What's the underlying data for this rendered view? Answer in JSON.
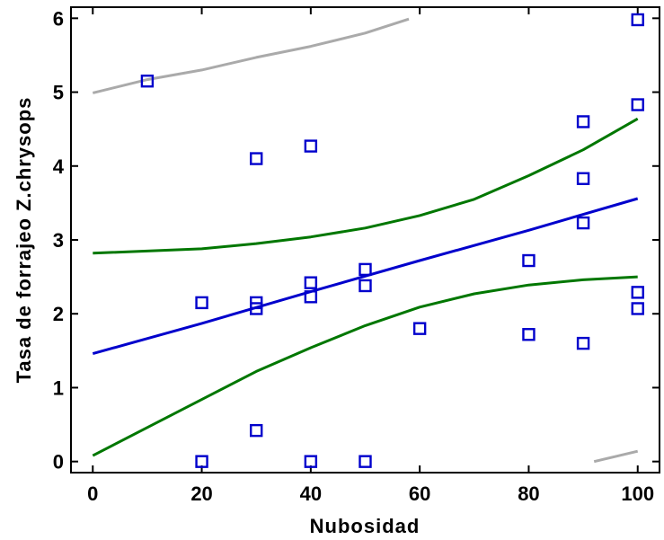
{
  "chart_data": {
    "type": "scatter",
    "xlabel": "Nubosidad",
    "ylabel": "Tasa de forrajeo Z.chrysops",
    "xlim": [
      -4,
      104
    ],
    "ylim": [
      -0.15,
      6.15
    ],
    "x_ticks": [
      0,
      20,
      40,
      60,
      80,
      100
    ],
    "y_ticks": [
      0,
      1,
      2,
      3,
      4,
      5,
      6
    ],
    "grid": false,
    "marker_color": "#0000cc",
    "points": [
      {
        "x": 10,
        "y": 5.15
      },
      {
        "x": 20,
        "y": 2.15
      },
      {
        "x": 20,
        "y": 0.0
      },
      {
        "x": 30,
        "y": 4.1
      },
      {
        "x": 30,
        "y": 2.15
      },
      {
        "x": 30,
        "y": 2.07
      },
      {
        "x": 30,
        "y": 0.42
      },
      {
        "x": 40,
        "y": 4.27
      },
      {
        "x": 40,
        "y": 2.42
      },
      {
        "x": 40,
        "y": 2.23
      },
      {
        "x": 40,
        "y": 0.0
      },
      {
        "x": 50,
        "y": 2.6
      },
      {
        "x": 50,
        "y": 2.38
      },
      {
        "x": 50,
        "y": 0.0
      },
      {
        "x": 60,
        "y": 1.8
      },
      {
        "x": 80,
        "y": 2.72
      },
      {
        "x": 80,
        "y": 1.72
      },
      {
        "x": 90,
        "y": 4.6
      },
      {
        "x": 90,
        "y": 3.83
      },
      {
        "x": 90,
        "y": 3.23
      },
      {
        "x": 90,
        "y": 1.6
      },
      {
        "x": 100,
        "y": 5.98
      },
      {
        "x": 100,
        "y": 4.83
      },
      {
        "x": 100,
        "y": 2.29
      },
      {
        "x": 100,
        "y": 2.07
      }
    ],
    "lines": [
      {
        "color": "#0000cc",
        "points": [
          [
            0,
            1.46
          ],
          [
            20,
            1.87
          ],
          [
            40,
            2.3
          ],
          [
            60,
            2.72
          ],
          [
            80,
            3.13
          ],
          [
            100,
            3.56
          ]
        ]
      },
      {
        "color": "#007700",
        "points": [
          [
            0,
            2.82
          ],
          [
            20,
            2.88
          ],
          [
            30,
            2.95
          ],
          [
            40,
            3.04
          ],
          [
            50,
            3.16
          ],
          [
            60,
            3.33
          ],
          [
            70,
            3.55
          ],
          [
            80,
            3.87
          ],
          [
            90,
            4.22
          ],
          [
            100,
            4.64
          ]
        ]
      },
      {
        "color": "#007700",
        "points": [
          [
            0,
            0.08
          ],
          [
            10,
            0.46
          ],
          [
            20,
            0.84
          ],
          [
            30,
            1.22
          ],
          [
            40,
            1.54
          ],
          [
            50,
            1.84
          ],
          [
            60,
            2.09
          ],
          [
            70,
            2.27
          ],
          [
            80,
            2.39
          ],
          [
            90,
            2.46
          ],
          [
            100,
            2.5
          ]
        ]
      },
      {
        "color": "#aaaaaa",
        "points": [
          [
            0,
            4.99
          ],
          [
            10,
            5.17
          ],
          [
            20,
            5.3
          ],
          [
            30,
            5.47
          ],
          [
            40,
            5.62
          ],
          [
            50,
            5.8
          ],
          [
            58,
            5.99
          ]
        ]
      },
      {
        "color": "#aaaaaa",
        "points": [
          [
            92,
            0.0
          ],
          [
            96,
            0.07
          ],
          [
            100,
            0.14
          ]
        ]
      }
    ]
  }
}
